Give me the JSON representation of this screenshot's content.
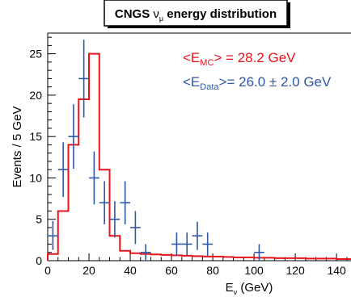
{
  "colors": {
    "mc": "#e8141c",
    "data": "#2f57a6",
    "axis": "#000000",
    "background": "#ffffff"
  },
  "chart_data": {
    "type": "histogram",
    "title": {
      "prefix": "CNGS ",
      "nu": "ν",
      "sub": "μ",
      "suffix": " energy distribution"
    },
    "xlabel": {
      "main": "E",
      "sub": "ν",
      "unit": " (GeV)"
    },
    "ylabel": "Events / 5 GeV",
    "xlim": [
      0,
      147
    ],
    "ylim": [
      0,
      27.5
    ],
    "xticks": [
      0,
      20,
      40,
      60,
      80,
      100,
      120,
      140
    ],
    "yticks": [
      0,
      5,
      10,
      15,
      20,
      25
    ],
    "xtick_labels": [
      "0",
      "20",
      "40",
      "60",
      "80",
      "100",
      "120",
      "140"
    ],
    "ytick_labels": [
      "0",
      "5",
      "10",
      "15",
      "20",
      "25"
    ],
    "annotations": {
      "mc": {
        "main": "<E",
        "sub": "MC",
        "rest": "> = 28.2 GeV"
      },
      "data": {
        "main": "<E",
        "sub": "Data",
        "rest": ">= 26.0 ± 2.0 GeV"
      }
    },
    "series": [
      {
        "kind": "mc-histogram",
        "bin_width": 5,
        "bins": [
          [
            0,
            0.8
          ],
          [
            5,
            6
          ],
          [
            10,
            14
          ],
          [
            15,
            19.5
          ],
          [
            20,
            25
          ],
          [
            25,
            11
          ],
          [
            30,
            3
          ],
          [
            35,
            1.2
          ],
          [
            40,
            0.9
          ],
          [
            45,
            0.8
          ],
          [
            50,
            0.75
          ],
          [
            55,
            0.7
          ],
          [
            60,
            0.65
          ],
          [
            65,
            0.6
          ],
          [
            70,
            0.55
          ],
          [
            75,
            0.5
          ],
          [
            80,
            0.5
          ],
          [
            85,
            0.45
          ],
          [
            90,
            0.4
          ],
          [
            95,
            0.4
          ],
          [
            100,
            0.35
          ],
          [
            105,
            0.35
          ],
          [
            110,
            0.3
          ],
          [
            115,
            0.3
          ],
          [
            120,
            0.3
          ],
          [
            125,
            0.25
          ],
          [
            130,
            0.25
          ],
          [
            135,
            0.25
          ],
          [
            140,
            0.2
          ],
          [
            145,
            0.2
          ]
        ]
      },
      {
        "kind": "data-points",
        "xerr": 2.5,
        "points": [
          {
            "x": 2.5,
            "y": 3,
            "elo": 1.7,
            "ehi": 1.8
          },
          {
            "x": 7.5,
            "y": 11,
            "elo": 3.3,
            "ehi": 3.3
          },
          {
            "x": 12.5,
            "y": 15,
            "elo": 3.9,
            "ehi": 3.9
          },
          {
            "x": 17.5,
            "y": 22,
            "elo": 4.7,
            "ehi": 4.7
          },
          {
            "x": 22.5,
            "y": 10,
            "elo": 3.2,
            "ehi": 3.2
          },
          {
            "x": 27.5,
            "y": 7,
            "elo": 2.6,
            "ehi": 2.6
          },
          {
            "x": 32.5,
            "y": 5,
            "elo": 2.2,
            "ehi": 2.2
          },
          {
            "x": 37.5,
            "y": 7,
            "elo": 2.6,
            "ehi": 2.6
          },
          {
            "x": 42.5,
            "y": 4,
            "elo": 2.0,
            "ehi": 2.0
          },
          {
            "x": 47.5,
            "y": 1,
            "elo": 1.0,
            "ehi": 1.0
          },
          {
            "x": 62.5,
            "y": 2,
            "elo": 1.4,
            "ehi": 1.4
          },
          {
            "x": 67.5,
            "y": 2,
            "elo": 1.4,
            "ehi": 1.4
          },
          {
            "x": 72.5,
            "y": 3,
            "elo": 1.7,
            "ehi": 1.7
          },
          {
            "x": 77.5,
            "y": 2,
            "elo": 1.4,
            "ehi": 1.4
          },
          {
            "x": 102.5,
            "y": 1,
            "elo": 1.0,
            "ehi": 1.0
          }
        ]
      }
    ]
  }
}
